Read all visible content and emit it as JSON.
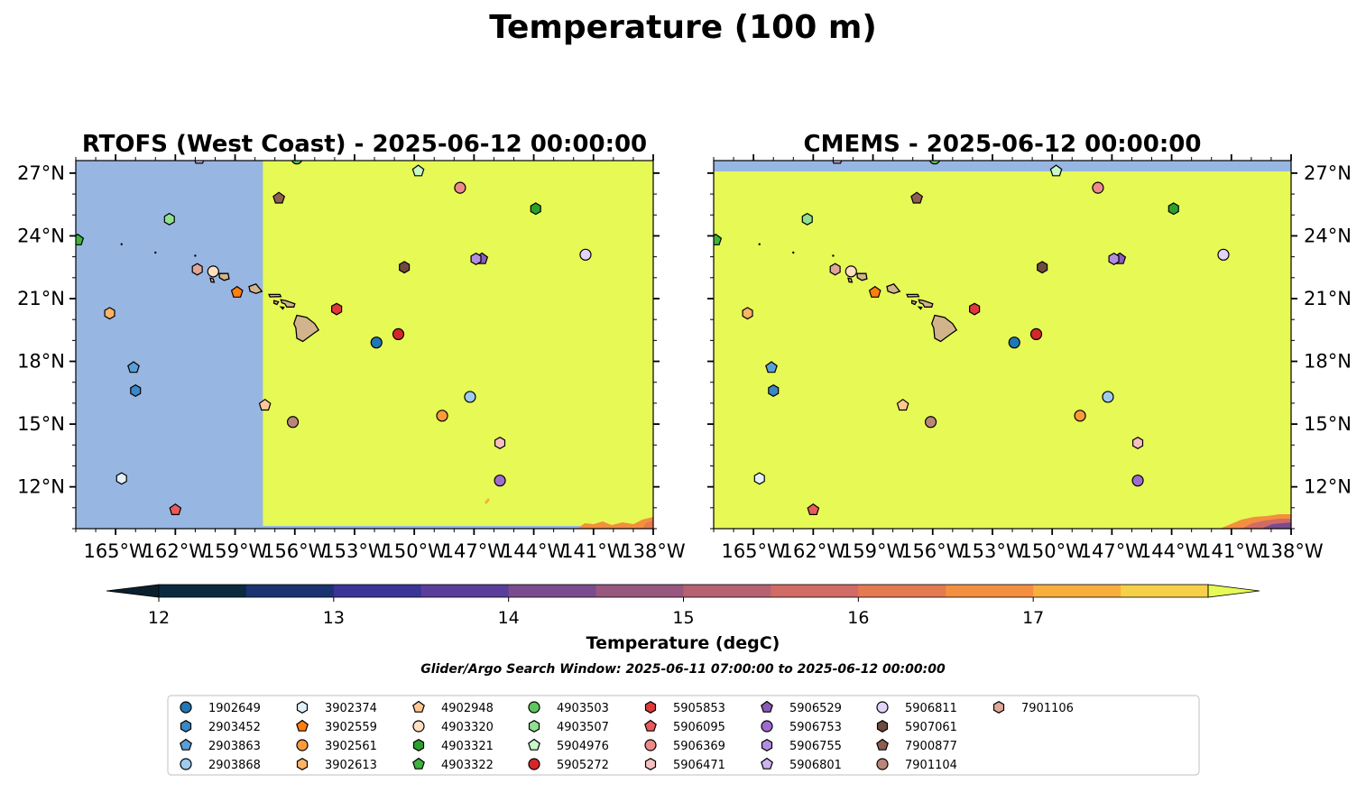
{
  "figure": {
    "title": "Temperature (100 m)",
    "search_window": "Glider/Argo Search Window: 2025-06-11 07:00:00 to 2025-06-12 00:00:00"
  },
  "chart_data": {
    "type": "map",
    "panels": [
      {
        "title": "RTOFS (West Coast) - 2025-06-12 00:00:00",
        "field_description": "Blue no-data region west of about 157.6°W; yellow (>17.5 degC) elsewhere; warmer-cool orange patches near 10.5°N, 141–138°W",
        "nodata_boundary_lon": -157.6,
        "tick_labels_side": "left"
      },
      {
        "title": "CMEMS - 2025-06-12 00:00:00",
        "field_description": "Yellow (>17.5 degC) over nearly whole domain; blue no-data strip north of about 27.2°N; orange-purple patch near 10.2–10.8°N, 142–138°W",
        "nodata_boundary_lat": 27.2,
        "tick_labels_side": "right"
      }
    ],
    "lon_range": [
      -167,
      -138
    ],
    "lat_range": [
      10,
      27.6
    ],
    "xticks": [
      -165,
      -162,
      -159,
      -156,
      -153,
      -150,
      -147,
      -144,
      -141,
      -138
    ],
    "xtick_labels": [
      "165°W",
      "162°W",
      "159°W",
      "156°W",
      "153°W",
      "150°W",
      "147°W",
      "144°W",
      "141°W",
      "138°W"
    ],
    "yticks": [
      12,
      15,
      18,
      21,
      24,
      27
    ],
    "ytick_labels": [
      "12°N",
      "15°N",
      "18°N",
      "21°N",
      "24°N",
      "27°N"
    ],
    "colorbar": {
      "label": "Temperature (degC)",
      "levels": [
        12,
        12.5,
        13,
        13.5,
        14,
        14.5,
        15,
        15.5,
        16,
        16.5,
        17,
        17.5
      ],
      "tick_values": [
        12,
        13,
        14,
        15,
        16,
        17
      ],
      "tick_labels": [
        "12",
        "13",
        "14",
        "15",
        "16",
        "17"
      ],
      "colors": [
        "#0c2a3e",
        "#1b3370",
        "#3a3597",
        "#5b3e9b",
        "#7a4c8e",
        "#98577f",
        "#b56172",
        "#d06b65",
        "#e57a50",
        "#f38f3f",
        "#f8ae3d",
        "#f6d049"
      ],
      "under_color": "#0a1f2e",
      "over_color": "#e6f955",
      "extend": "both"
    },
    "land_color": "#d2b48c",
    "nodata_color": "#98b6e2",
    "field_color": "#e6f955",
    "floats": [
      {
        "id": "1902649",
        "marker": "circle",
        "color": "#1f77b4",
        "lon": -151.9,
        "lat": 18.9
      },
      {
        "id": "2903452",
        "marker": "hexagon",
        "color": "#3a88c6",
        "lon": -164.0,
        "lat": 16.6
      },
      {
        "id": "2903863",
        "marker": "pentagon",
        "color": "#5a9fd8",
        "lon": -164.1,
        "lat": 17.7
      },
      {
        "id": "2903868",
        "marker": "circle",
        "color": "#9ecbee",
        "lon": -147.2,
        "lat": 16.3
      },
      {
        "id": "3902374",
        "marker": "hexagon",
        "color": "#e2f0fb",
        "lon": -164.7,
        "lat": 12.4
      },
      {
        "id": "3902559",
        "marker": "pentagon",
        "color": "#ff7f0e",
        "lon": -158.9,
        "lat": 21.3
      },
      {
        "id": "3902561",
        "marker": "circle",
        "color": "#ff9a3c",
        "lon": -148.6,
        "lat": 15.4
      },
      {
        "id": "3902613",
        "marker": "hexagon",
        "color": "#ffb366",
        "lon": -165.3,
        "lat": 20.3
      },
      {
        "id": "4902948",
        "marker": "pentagon",
        "color": "#ffc895",
        "lon": -157.5,
        "lat": 15.9
      },
      {
        "id": "4903320",
        "marker": "circle",
        "color": "#ffe0c0",
        "lon": -160.1,
        "lat": 22.3
      },
      {
        "id": "4903321",
        "marker": "hexagon",
        "color": "#2ca02c",
        "lon": -143.9,
        "lat": 25.3
      },
      {
        "id": "4903322",
        "marker": "pentagon",
        "color": "#3db43d",
        "lon": -166.9,
        "lat": 23.8
      },
      {
        "id": "4903503",
        "marker": "circle",
        "color": "#5cc75c",
        "lon": -155.9,
        "lat": 27.7
      },
      {
        "id": "4903507",
        "marker": "hexagon",
        "color": "#8fe08f",
        "lon": -162.3,
        "lat": 24.8
      },
      {
        "id": "5904976",
        "marker": "pentagon",
        "color": "#c8f7c8",
        "lon": -149.8,
        "lat": 27.1
      },
      {
        "id": "5905272",
        "marker": "circle",
        "color": "#d62728",
        "lon": -150.8,
        "lat": 19.3
      },
      {
        "id": "5905853",
        "marker": "hexagon",
        "color": "#e0393a",
        "lon": -153.9,
        "lat": 20.5
      },
      {
        "id": "5906095",
        "marker": "pentagon",
        "color": "#ea5a5a",
        "lon": -162.0,
        "lat": 10.9
      },
      {
        "id": "5906369",
        "marker": "circle",
        "color": "#f08a8a",
        "lon": -147.7,
        "lat": 26.3
      },
      {
        "id": "5906471",
        "marker": "hexagon",
        "color": "#f7c0c0",
        "lon": -145.7,
        "lat": 14.1
      },
      {
        "id": "5906529",
        "marker": "pentagon",
        "color": "#8c5bb8",
        "lon": -146.6,
        "lat": 22.9
      },
      {
        "id": "5906753",
        "marker": "circle",
        "color": "#9e6ccf",
        "lon": -145.7,
        "lat": 12.3
      },
      {
        "id": "5906755",
        "marker": "hexagon",
        "color": "#b38ee0",
        "lon": -146.9,
        "lat": 22.9
      },
      {
        "id": "5906801",
        "marker": "pentagon",
        "color": "#cdb3f0",
        "lon": -160.8,
        "lat": 27.7
      },
      {
        "id": "5906811",
        "marker": "circle",
        "color": "#e2d3f8",
        "lon": -141.4,
        "lat": 23.1
      },
      {
        "id": "5907061",
        "marker": "hexagon",
        "color": "#6e4b3f",
        "lon": -150.5,
        "lat": 22.5
      },
      {
        "id": "7900877",
        "marker": "pentagon",
        "color": "#8c5f50",
        "lon": -156.8,
        "lat": 25.8
      },
      {
        "id": "7901104",
        "marker": "circle",
        "color": "#b9877a",
        "lon": -156.1,
        "lat": 15.1
      },
      {
        "id": "7901106",
        "marker": "hexagon",
        "color": "#e0a699",
        "lon": -160.9,
        "lat": 22.4
      }
    ]
  }
}
